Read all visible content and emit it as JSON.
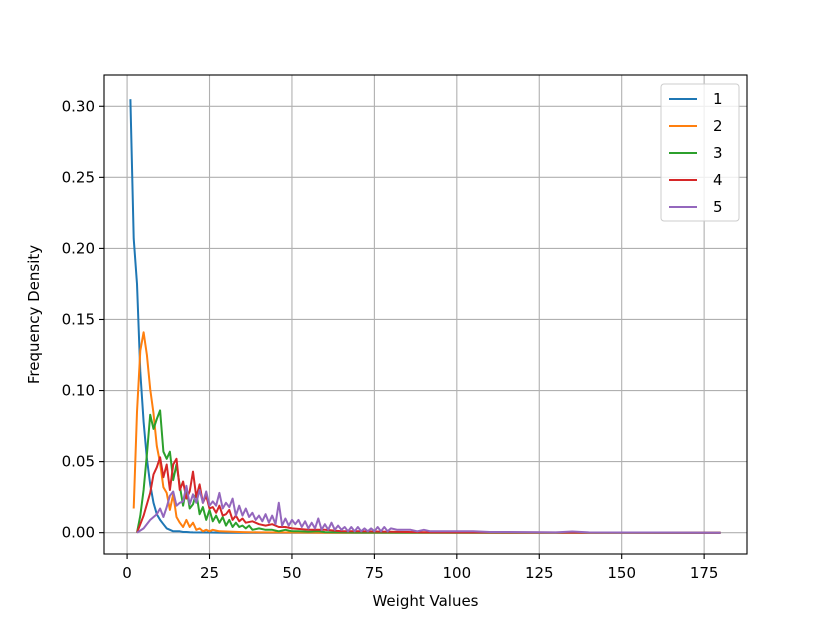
{
  "chart_data": {
    "type": "line",
    "title": "",
    "xlabel": "Weight Values",
    "ylabel": "Frequency Density",
    "xlim": [
      -7,
      188
    ],
    "ylim": [
      -0.015,
      0.322
    ],
    "xticks": [
      0,
      25,
      50,
      75,
      100,
      125,
      150,
      175
    ],
    "yticks": [
      0.0,
      0.05,
      0.1,
      0.15,
      0.2,
      0.25,
      0.3
    ],
    "xtick_labels": [
      "0",
      "25",
      "50",
      "75",
      "100",
      "125",
      "150",
      "175"
    ],
    "ytick_labels": [
      "0.00",
      "0.05",
      "0.10",
      "0.15",
      "0.20",
      "0.25",
      "0.30"
    ],
    "grid": true,
    "legend_position": "top-right",
    "series": [
      {
        "name": "1",
        "color": "#1f77b4",
        "x": [
          1,
          2,
          3,
          4,
          5,
          6,
          7,
          8,
          9,
          10,
          11,
          12,
          13,
          14,
          15,
          16,
          17,
          18,
          19,
          20,
          25,
          30,
          40,
          60,
          180
        ],
        "y": [
          0.305,
          0.207,
          0.175,
          0.113,
          0.078,
          0.052,
          0.034,
          0.021,
          0.013,
          0.009,
          0.006,
          0.003,
          0.002,
          0.001,
          0.001,
          0.001,
          0.0005,
          0.0005,
          0.0003,
          0.0002,
          0.0001,
          0.0,
          0.0,
          0.0,
          0.0
        ]
      },
      {
        "name": "2",
        "color": "#ff7f0e",
        "x": [
          2,
          3,
          4,
          5,
          6,
          7,
          8,
          9,
          10,
          11,
          12,
          13,
          14,
          15,
          16,
          17,
          18,
          19,
          20,
          21,
          22,
          23,
          24,
          25,
          26,
          28,
          30,
          35,
          40,
          50,
          60,
          180
        ],
        "y": [
          0.017,
          0.085,
          0.128,
          0.141,
          0.125,
          0.101,
          0.084,
          0.061,
          0.049,
          0.032,
          0.028,
          0.016,
          0.027,
          0.011,
          0.007,
          0.004,
          0.009,
          0.004,
          0.007,
          0.002,
          0.003,
          0.001,
          0.002,
          0.001,
          0.002,
          0.001,
          0.0008,
          0.0004,
          0.0002,
          0.0001,
          0.0,
          0.0
        ]
      },
      {
        "name": "3",
        "color": "#2ca02c",
        "x": [
          3,
          4,
          5,
          6,
          7,
          8,
          9,
          10,
          11,
          12,
          13,
          14,
          15,
          16,
          17,
          18,
          19,
          20,
          21,
          22,
          23,
          24,
          25,
          26,
          27,
          28,
          29,
          30,
          31,
          32,
          33,
          34,
          35,
          36,
          37,
          38,
          40,
          42,
          44,
          46,
          48,
          50,
          52,
          55,
          58,
          60,
          70,
          180
        ],
        "y": [
          0.0,
          0.012,
          0.03,
          0.055,
          0.083,
          0.073,
          0.08,
          0.086,
          0.057,
          0.052,
          0.057,
          0.037,
          0.048,
          0.033,
          0.019,
          0.032,
          0.017,
          0.02,
          0.028,
          0.013,
          0.018,
          0.009,
          0.016,
          0.008,
          0.012,
          0.007,
          0.011,
          0.005,
          0.009,
          0.004,
          0.007,
          0.004,
          0.005,
          0.003,
          0.005,
          0.002,
          0.003,
          0.002,
          0.002,
          0.001,
          0.002,
          0.001,
          0.001,
          0.0007,
          0.001,
          0.0004,
          0.0001,
          0.0
        ]
      },
      {
        "name": "4",
        "color": "#d62728",
        "x": [
          3,
          5,
          7,
          8,
          9,
          10,
          11,
          12,
          13,
          14,
          15,
          16,
          17,
          18,
          19,
          20,
          21,
          22,
          23,
          24,
          25,
          26,
          27,
          28,
          29,
          30,
          31,
          32,
          33,
          34,
          35,
          36,
          38,
          40,
          42,
          44,
          46,
          48,
          50,
          55,
          60,
          65,
          70,
          80,
          90,
          180
        ],
        "y": [
          0.0,
          0.012,
          0.028,
          0.041,
          0.046,
          0.053,
          0.039,
          0.048,
          0.03,
          0.048,
          0.052,
          0.03,
          0.036,
          0.024,
          0.029,
          0.043,
          0.025,
          0.034,
          0.021,
          0.026,
          0.017,
          0.018,
          0.014,
          0.019,
          0.012,
          0.013,
          0.016,
          0.009,
          0.012,
          0.008,
          0.01,
          0.007,
          0.008,
          0.006,
          0.005,
          0.006,
          0.004,
          0.004,
          0.003,
          0.002,
          0.002,
          0.001,
          0.001,
          0.0006,
          0.0003,
          0.0
        ]
      },
      {
        "name": "5",
        "color": "#9467bd",
        "x": [
          3,
          5,
          7,
          9,
          10,
          11,
          12,
          13,
          14,
          15,
          16,
          17,
          18,
          19,
          20,
          21,
          22,
          23,
          24,
          25,
          26,
          27,
          28,
          29,
          30,
          31,
          32,
          33,
          34,
          35,
          36,
          37,
          38,
          39,
          40,
          41,
          42,
          43,
          44,
          45,
          46,
          47,
          48,
          49,
          50,
          51,
          52,
          53,
          54,
          55,
          56,
          57,
          58,
          59,
          60,
          61,
          62,
          63,
          64,
          65,
          66,
          67,
          68,
          69,
          70,
          71,
          72,
          73,
          74,
          75,
          76,
          77,
          78,
          79,
          80,
          82,
          84,
          86,
          88,
          90,
          92,
          95,
          98,
          100,
          105,
          110,
          115,
          120,
          130,
          135,
          140,
          150,
          160,
          180
        ],
        "y": [
          0.0,
          0.003,
          0.009,
          0.013,
          0.017,
          0.011,
          0.018,
          0.026,
          0.029,
          0.019,
          0.021,
          0.022,
          0.033,
          0.02,
          0.027,
          0.021,
          0.03,
          0.021,
          0.029,
          0.019,
          0.022,
          0.019,
          0.028,
          0.017,
          0.021,
          0.018,
          0.024,
          0.012,
          0.019,
          0.012,
          0.017,
          0.011,
          0.014,
          0.009,
          0.012,
          0.008,
          0.013,
          0.007,
          0.012,
          0.006,
          0.021,
          0.005,
          0.01,
          0.005,
          0.009,
          0.006,
          0.009,
          0.004,
          0.008,
          0.003,
          0.007,
          0.003,
          0.01,
          0.002,
          0.006,
          0.002,
          0.007,
          0.002,
          0.005,
          0.002,
          0.004,
          0.001,
          0.004,
          0.001,
          0.004,
          0.001,
          0.003,
          0.001,
          0.003,
          0.001,
          0.004,
          0.001,
          0.004,
          0.001,
          0.003,
          0.002,
          0.002,
          0.002,
          0.001,
          0.002,
          0.001,
          0.001,
          0.001,
          0.001,
          0.001,
          0.0005,
          0.0005,
          0.0004,
          0.0002,
          0.0008,
          0.0002,
          0.0001,
          0.0001,
          0.0
        ]
      }
    ]
  }
}
